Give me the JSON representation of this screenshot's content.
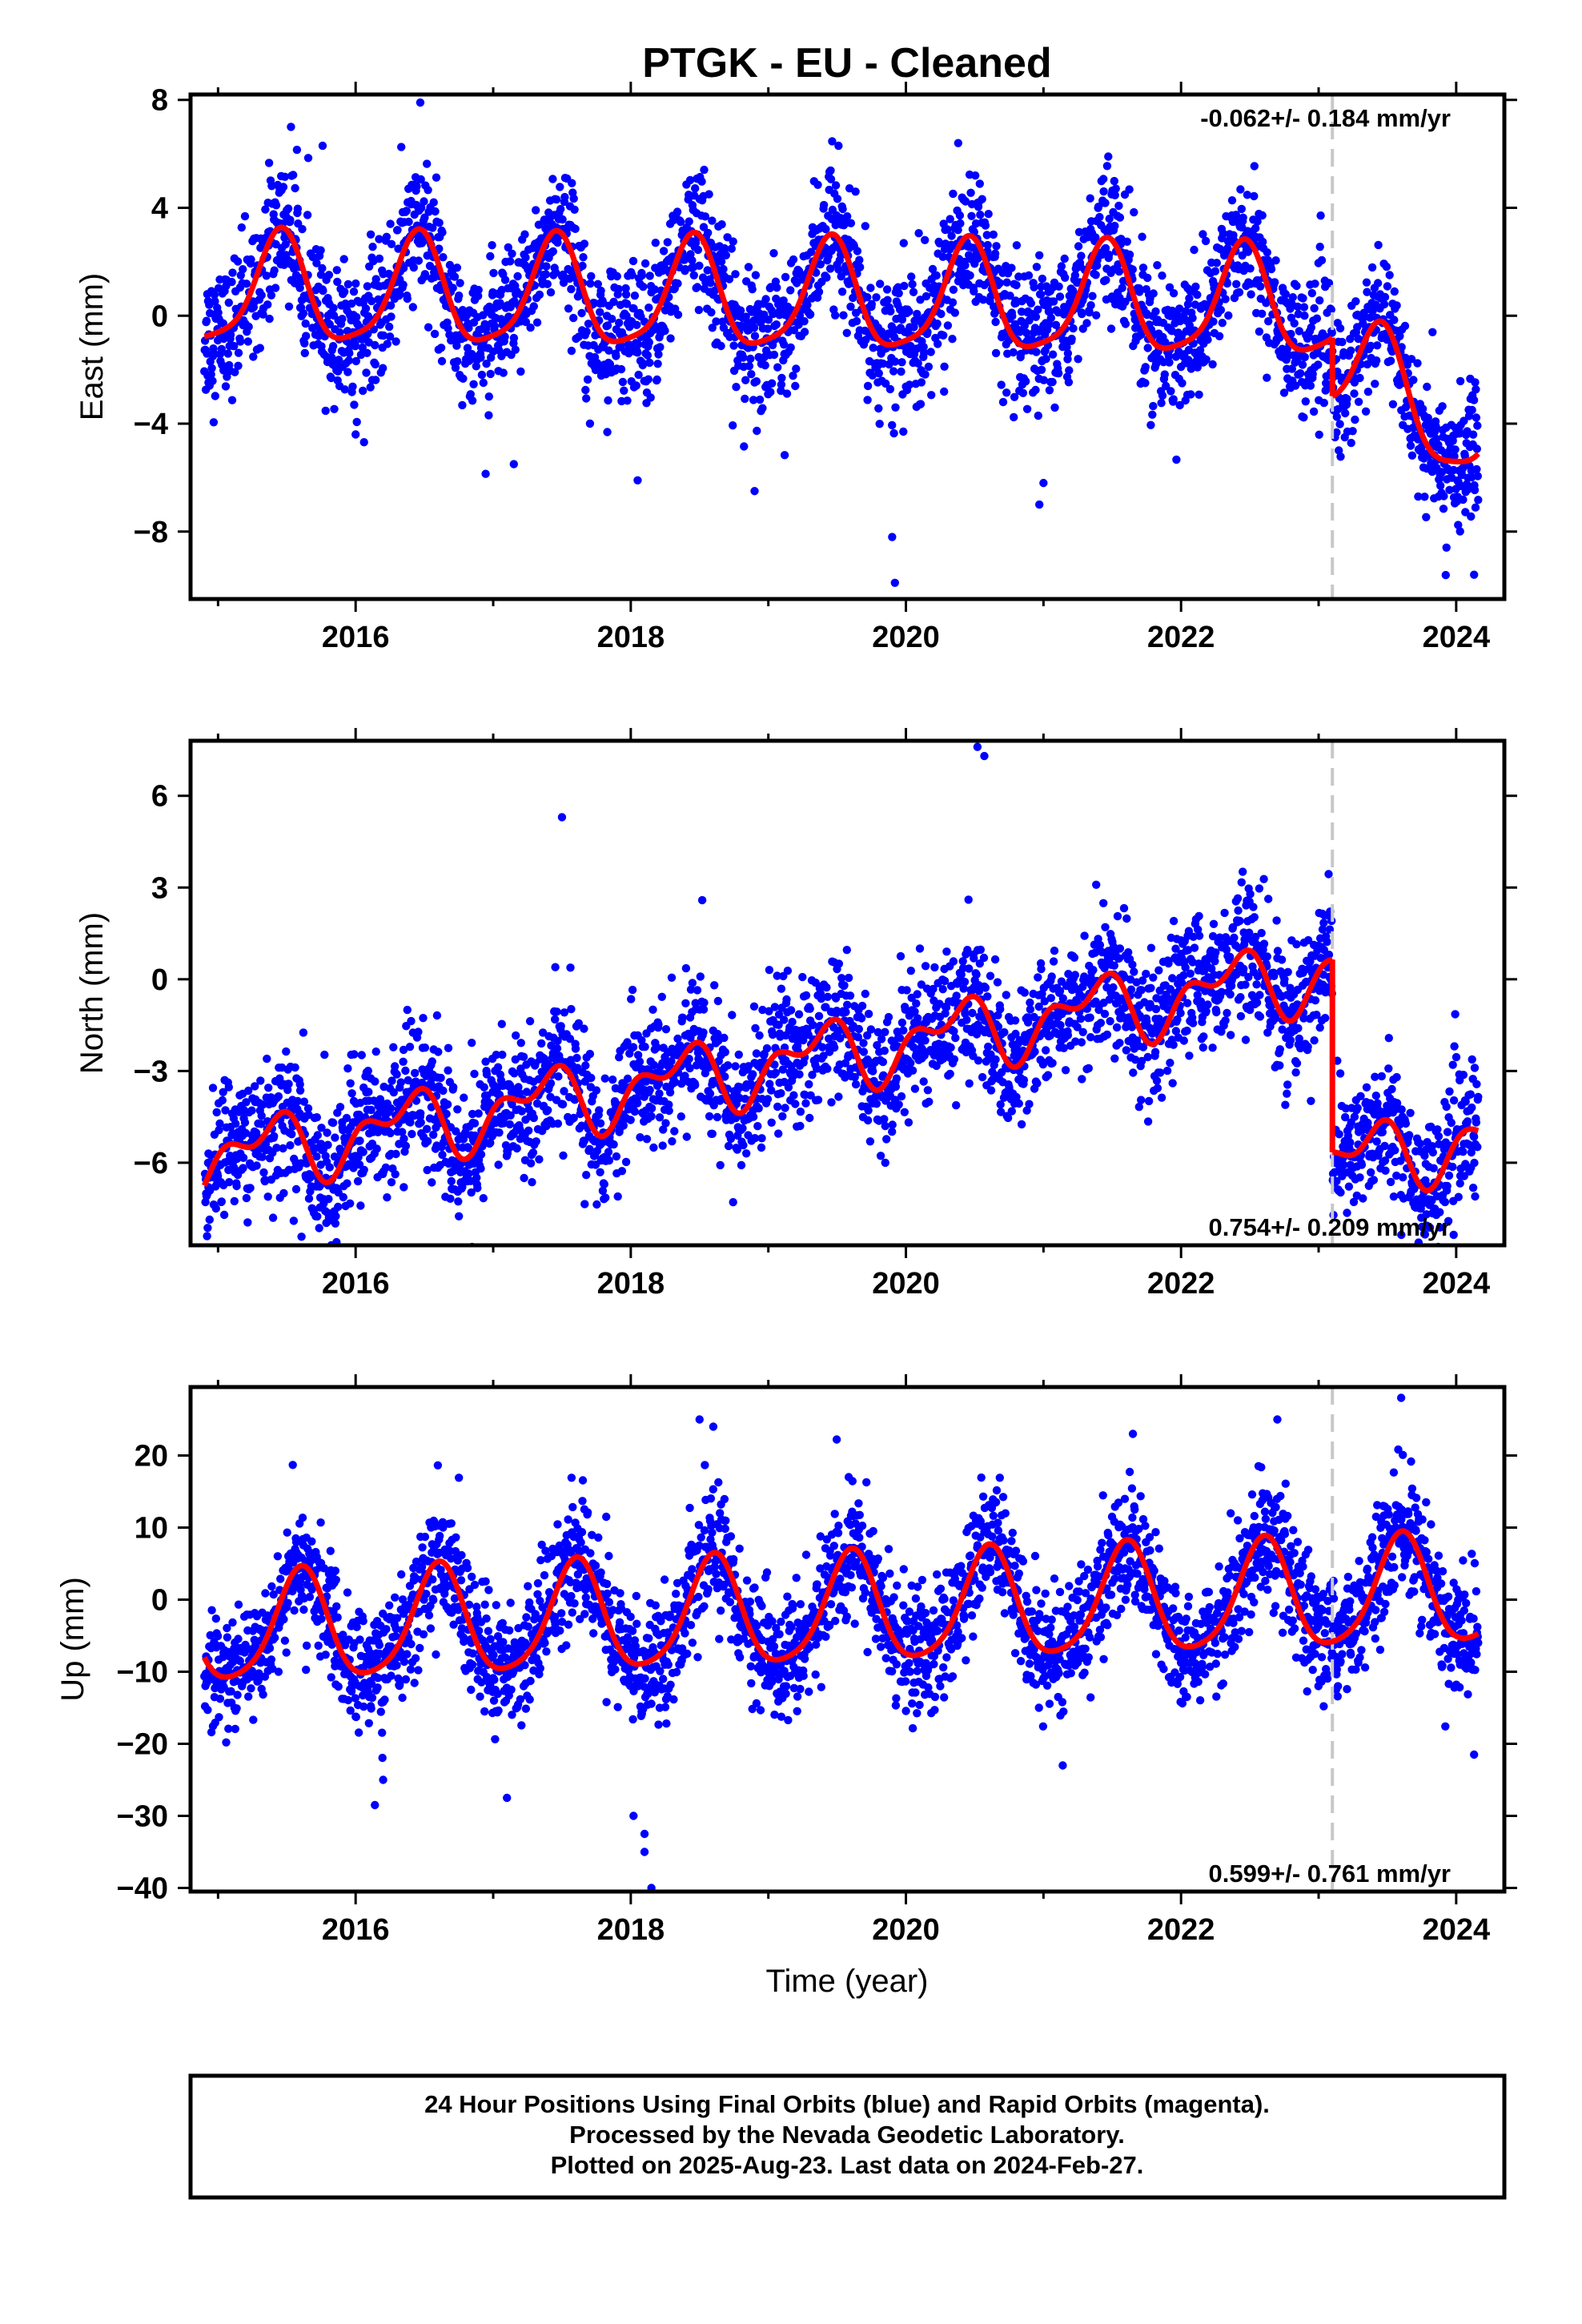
{
  "title": "PTGK  - EU - Cleaned",
  "xlabel": "Time (year)",
  "footer": [
    "24 Hour Positions Using Final Orbits (blue) and Rapid Orbits (magenta).",
    "Processed by the Nevada Geodetic Laboratory.",
    "Plotted on 2025-Aug-23. Last data on 2024-Feb-27."
  ],
  "colors": {
    "data": "#0000ff",
    "model": "#ff0000",
    "break": "#c8c8c8",
    "frame": "#000000"
  },
  "chart_data": [
    {
      "type": "scatter",
      "panel": "East",
      "ylabel": "East (mm)",
      "rate_label": "-0.062+/- 0.184 mm/yr",
      "xlim": [
        2014.8,
        2024.35
      ],
      "ylim": [
        -10.5,
        8.2
      ],
      "yticks": [
        8,
        4,
        0,
        -4,
        -8
      ],
      "ytick_labels": [
        "8",
        "4",
        "0",
        "−4",
        "−8"
      ],
      "xticks": [
        2016,
        2018,
        2020,
        2022,
        2024
      ],
      "xtick_labels": [
        "2016",
        "2018",
        "2020",
        "2022",
        "2024"
      ],
      "break_year": 2023.1,
      "data_start": 2014.9,
      "data_end": 2024.16,
      "model": {
        "segments": [
          {
            "t0": 2014.9,
            "t1": 2023.1,
            "offset": 0.62,
            "rate": -0.062,
            "amp1": 2.0,
            "phase1": 2015.2,
            "amp2": 0.45,
            "phase2": 2015.35
          },
          {
            "t0": 2023.1,
            "t1": 2024.16,
            "offset": -1.55,
            "rate": -0.062,
            "amp1": 2.0,
            "phase1": 2015.2,
            "amp2": 0.45,
            "phase2": 2015.35,
            "trend_after": -2.3
          }
        ]
      },
      "scatter_sigma": 1.25,
      "outliers": [
        [
          2019.92,
          -9.9
        ],
        [
          2019.9,
          -8.2
        ],
        [
          2020.97,
          -7.0
        ],
        [
          2021.0,
          -6.2
        ],
        [
          2018.9,
          -6.5
        ],
        [
          2018.05,
          -6.1
        ],
        [
          2024.13,
          -9.6
        ],
        [
          2015.76,
          6.3
        ],
        [
          2016.47,
          7.9
        ],
        [
          2019.51,
          6.3
        ],
        [
          2020.38,
          6.4
        ],
        [
          2015.53,
          7.0
        ],
        [
          2017.15,
          -5.5
        ],
        [
          2016.0,
          -4.4
        ]
      ]
    },
    {
      "type": "scatter",
      "panel": "North",
      "ylabel": "North (mm)",
      "rate_label": "0.754+/- 0.209 mm/yr",
      "xlim": [
        2014.8,
        2024.35
      ],
      "ylim": [
        -8.7,
        7.8
      ],
      "yticks": [
        6,
        3,
        0,
        -3,
        -6
      ],
      "ytick_labels": [
        "6",
        "3",
        "0",
        "−3",
        "−6"
      ],
      "xticks": [
        2016,
        2018,
        2020,
        2022,
        2024
      ],
      "xtick_labels": [
        "2016",
        "2018",
        "2020",
        "2022",
        "2024"
      ],
      "break_year": 2023.1,
      "data_start": 2014.9,
      "data_end": 2024.16,
      "model": {
        "segments": [
          {
            "t0": 2014.9,
            "t1": 2023.1,
            "offset": -2.8,
            "rate": 0.754,
            "amp1": 0.9,
            "phase1": 2015.1,
            "amp2": 0.6,
            "phase2": 2015.4
          },
          {
            "t0": 2023.1,
            "t1": 2024.16,
            "offset": -9.1,
            "rate": 0.754,
            "amp1": 0.9,
            "phase1": 2015.1,
            "amp2": 0.6,
            "phase2": 2015.4
          }
        ]
      },
      "scatter_sigma": 1.1,
      "outliers": [
        [
          2014.92,
          -8.4
        ],
        [
          2014.93,
          -6.8
        ],
        [
          2015.4,
          -7.8
        ],
        [
          2015.55,
          -7.9
        ],
        [
          2019.85,
          -6.0
        ],
        [
          2019.85,
          -4.8
        ],
        [
          2020.52,
          7.6
        ],
        [
          2020.57,
          7.3
        ],
        [
          2017.5,
          5.3
        ],
        [
          2024.14,
          -5.4
        ],
        [
          2016.35,
          -6.8
        ],
        [
          2018.3,
          -5.3
        ]
      ]
    },
    {
      "type": "scatter",
      "panel": "Up",
      "ylabel": "Up (mm)",
      "rate_label": "0.599+/- 0.761 mm/yr",
      "xlim": [
        2014.8,
        2024.35
      ],
      "ylim": [
        -40.5,
        29.5
      ],
      "yticks": [
        20,
        10,
        0,
        -10,
        -20,
        -30,
        -40
      ],
      "ytick_labels": [
        "20",
        "10",
        "0",
        "−10",
        "−20",
        "−30",
        "−40"
      ],
      "xticks": [
        2016,
        2018,
        2020,
        2022,
        2024
      ],
      "xtick_labels": [
        "2016",
        "2018",
        "2020",
        "2022",
        "2024"
      ],
      "break_year": 2023.1,
      "data_start": 2014.9,
      "data_end": 2024.16,
      "model": {
        "segments": [
          {
            "t0": 2014.9,
            "t1": 2024.16,
            "offset": -2.0,
            "rate": 0.599,
            "amp1": 7.5,
            "phase1": 2015.35,
            "amp2": 1.3,
            "phase2": 2015.5
          }
        ]
      },
      "scatter_sigma": 4.2,
      "outliers": [
        [
          2018.15,
          -40.0
        ],
        [
          2018.1,
          -35.0
        ],
        [
          2018.1,
          -32.5
        ],
        [
          2018.02,
          -30.0
        ],
        [
          2018.5,
          25.0
        ],
        [
          2018.6,
          24.0
        ],
        [
          2023.6,
          28.0
        ],
        [
          2016.14,
          -28.5
        ],
        [
          2017.1,
          -27.5
        ],
        [
          2022.7,
          25.0
        ],
        [
          2021.65,
          23.0
        ],
        [
          2024.13,
          -21.5
        ],
        [
          2016.2,
          -25.0
        ],
        [
          2021.14,
          -23.0
        ]
      ]
    }
  ]
}
